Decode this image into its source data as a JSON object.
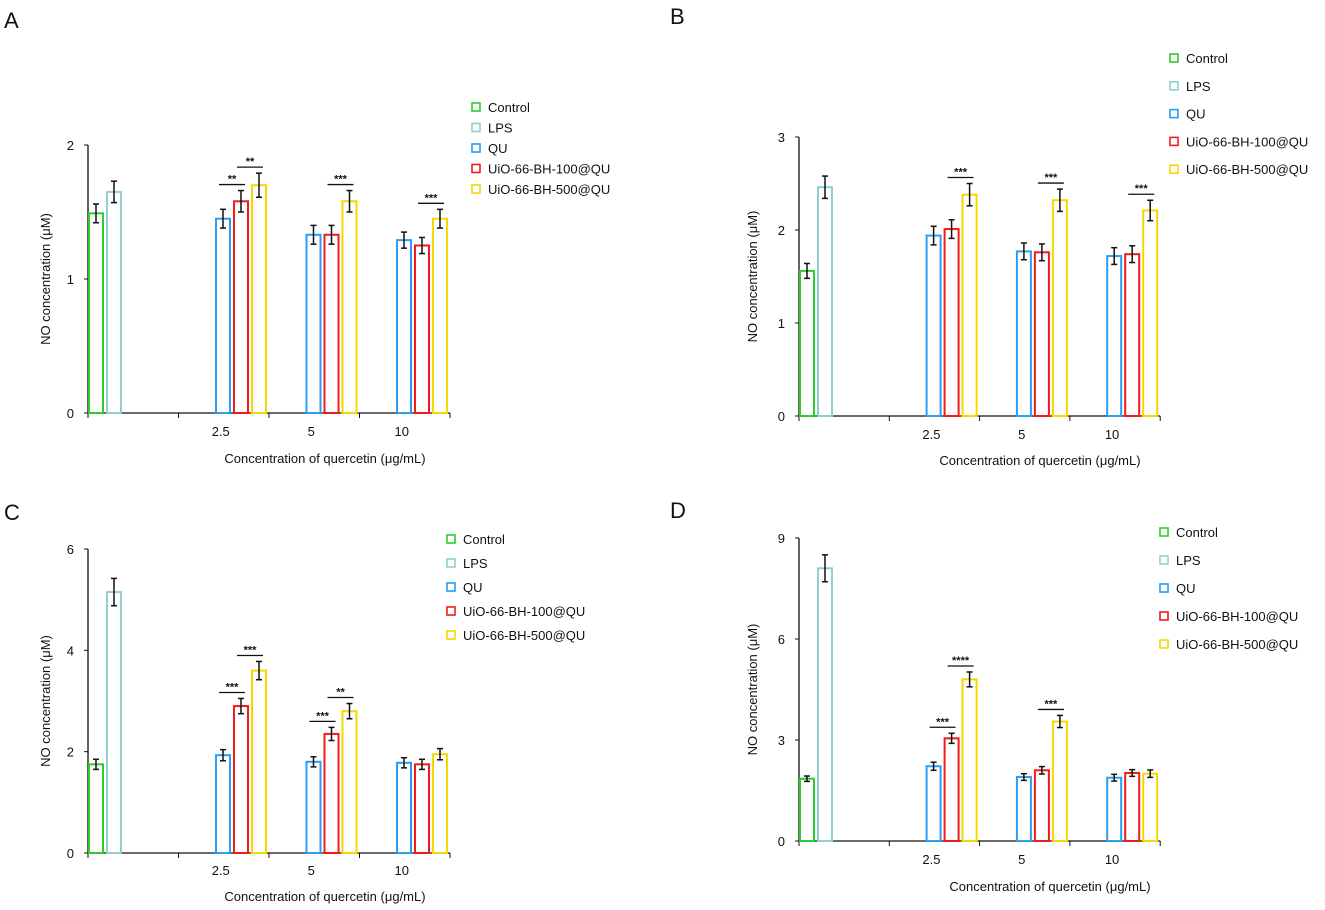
{
  "colors": {
    "Control": "#2ecc2e",
    "LPS": "#8fd0cc",
    "QU": "#2a9df4",
    "UiO-66-BH-100@QU": "#f01c1c",
    "UiO-66-BH-500@QU": "#f5d800"
  },
  "chart_data": [
    {
      "panel": "A",
      "type": "bar",
      "xlabel": "Concentration of quercetin (μg/mL)",
      "ylabel": "NO concentration (μM)",
      "categories": [
        "",
        "2.5",
        "5",
        "10"
      ],
      "ylim": [
        0,
        2
      ],
      "yticks": [
        0,
        1,
        2
      ],
      "legend": [
        "Control",
        "LPS",
        "QU",
        "UiO-66-BH-100@QU",
        "UiO-66-BH-500@QU"
      ],
      "series": [
        {
          "name": "Control",
          "values": [
            1.49,
            null,
            null,
            null
          ],
          "errors": [
            0.07,
            null,
            null,
            null
          ]
        },
        {
          "name": "LPS",
          "values": [
            1.65,
            null,
            null,
            null
          ],
          "errors": [
            0.08,
            null,
            null,
            null
          ]
        },
        {
          "name": "QU",
          "values": [
            null,
            1.45,
            1.33,
            1.29
          ],
          "errors": [
            null,
            0.07,
            0.07,
            0.06
          ]
        },
        {
          "name": "UiO-66-BH-100@QU",
          "values": [
            null,
            1.58,
            1.33,
            1.25
          ],
          "errors": [
            null,
            0.08,
            0.07,
            0.06
          ]
        },
        {
          "name": "UiO-66-BH-500@QU",
          "values": [
            null,
            1.7,
            1.58,
            1.45
          ],
          "errors": [
            null,
            0.09,
            0.08,
            0.07
          ]
        }
      ],
      "significance": [
        {
          "category": "2.5",
          "from": "QU",
          "to": "UiO-66-BH-100@QU",
          "label": "**"
        },
        {
          "category": "2.5",
          "from": "UiO-66-BH-100@QU",
          "to": "UiO-66-BH-500@QU",
          "label": "**"
        },
        {
          "category": "5",
          "from": "UiO-66-BH-100@QU",
          "to": "UiO-66-BH-500@QU",
          "label": "***"
        },
        {
          "category": "10",
          "from": "UiO-66-BH-100@QU",
          "to": "UiO-66-BH-500@QU",
          "label": "***"
        }
      ]
    },
    {
      "panel": "B",
      "type": "bar",
      "xlabel": "Concentration of quercetin (μg/mL)",
      "ylabel": "NO concentration (μM)",
      "categories": [
        "",
        "2.5",
        "5",
        "10"
      ],
      "ylim": [
        0,
        3
      ],
      "yticks": [
        0,
        1,
        2,
        3
      ],
      "legend": [
        "Control",
        "LPS",
        "QU",
        "UiO-66-BH-100@QU",
        "UiO-66-BH-500@QU"
      ],
      "series": [
        {
          "name": "Control",
          "values": [
            1.56,
            null,
            null,
            null
          ],
          "errors": [
            0.08,
            null,
            null,
            null
          ]
        },
        {
          "name": "LPS",
          "values": [
            2.46,
            null,
            null,
            null
          ],
          "errors": [
            0.12,
            null,
            null,
            null
          ]
        },
        {
          "name": "QU",
          "values": [
            null,
            1.94,
            1.77,
            1.72
          ],
          "errors": [
            null,
            0.1,
            0.09,
            0.09
          ]
        },
        {
          "name": "UiO-66-BH-100@QU",
          "values": [
            null,
            2.01,
            1.76,
            1.74
          ],
          "errors": [
            null,
            0.1,
            0.09,
            0.09
          ]
        },
        {
          "name": "UiO-66-BH-500@QU",
          "values": [
            null,
            2.38,
            2.32,
            2.21
          ],
          "errors": [
            null,
            0.12,
            0.12,
            0.11
          ]
        }
      ],
      "significance": [
        {
          "category": "2.5",
          "from": "UiO-66-BH-100@QU",
          "to": "UiO-66-BH-500@QU",
          "label": "***"
        },
        {
          "category": "5",
          "from": "UiO-66-BH-100@QU",
          "to": "UiO-66-BH-500@QU",
          "label": "***"
        },
        {
          "category": "10",
          "from": "UiO-66-BH-100@QU",
          "to": "UiO-66-BH-500@QU",
          "label": "***"
        }
      ]
    },
    {
      "panel": "C",
      "type": "bar",
      "xlabel": "Concentration of quercetin (μg/mL)",
      "ylabel": "NO concentration (μM)",
      "categories": [
        "",
        "2.5",
        "5",
        "10"
      ],
      "ylim": [
        0,
        6
      ],
      "yticks": [
        0,
        2,
        4,
        6
      ],
      "legend": [
        "Control",
        "LPS",
        "QU",
        "UiO-66-BH-100@QU",
        "UiO-66-BH-500@QU"
      ],
      "series": [
        {
          "name": "Control",
          "values": [
            1.75,
            null,
            null,
            null
          ],
          "errors": [
            0.1,
            null,
            null,
            null
          ]
        },
        {
          "name": "LPS",
          "values": [
            5.15,
            null,
            null,
            null
          ],
          "errors": [
            0.27,
            null,
            null,
            null
          ]
        },
        {
          "name": "QU",
          "values": [
            null,
            1.93,
            1.8,
            1.78
          ],
          "errors": [
            null,
            0.11,
            0.1,
            0.1
          ]
        },
        {
          "name": "UiO-66-BH-100@QU",
          "values": [
            null,
            2.9,
            2.35,
            1.75
          ],
          "errors": [
            null,
            0.15,
            0.13,
            0.1
          ]
        },
        {
          "name": "UiO-66-BH-500@QU",
          "values": [
            null,
            3.6,
            2.8,
            1.95
          ],
          "errors": [
            null,
            0.18,
            0.15,
            0.11
          ]
        }
      ],
      "significance": [
        {
          "category": "2.5",
          "from": "QU",
          "to": "UiO-66-BH-100@QU",
          "label": "***"
        },
        {
          "category": "2.5",
          "from": "UiO-66-BH-100@QU",
          "to": "UiO-66-BH-500@QU",
          "label": "***"
        },
        {
          "category": "5",
          "from": "QU",
          "to": "UiO-66-BH-100@QU",
          "label": "***"
        },
        {
          "category": "5",
          "from": "UiO-66-BH-100@QU",
          "to": "UiO-66-BH-500@QU",
          "label": "**"
        }
      ]
    },
    {
      "panel": "D",
      "type": "bar",
      "xlabel": "Concentration of quercetin (μg/mL)",
      "ylabel": "NO concentration (μM)",
      "categories": [
        "",
        "2.5",
        "5",
        "10"
      ],
      "ylim": [
        0,
        9
      ],
      "yticks": [
        0,
        3,
        6,
        9
      ],
      "legend": [
        "Control",
        "LPS",
        "QU",
        "UiO-66-BH-100@QU",
        "UiO-66-BH-500@QU"
      ],
      "series": [
        {
          "name": "Control",
          "values": [
            1.85,
            null,
            null,
            null
          ],
          "errors": [
            0.08,
            null,
            null,
            null
          ]
        },
        {
          "name": "LPS",
          "values": [
            8.1,
            null,
            null,
            null
          ],
          "errors": [
            0.4,
            null,
            null,
            null
          ]
        },
        {
          "name": "QU",
          "values": [
            null,
            2.22,
            1.9,
            1.88
          ],
          "errors": [
            null,
            0.12,
            0.1,
            0.1
          ]
        },
        {
          "name": "UiO-66-BH-100@QU",
          "values": [
            null,
            3.05,
            2.1,
            2.02
          ],
          "errors": [
            null,
            0.15,
            0.11,
            0.1
          ]
        },
        {
          "name": "UiO-66-BH-500@QU",
          "values": [
            null,
            4.8,
            3.55,
            2.0
          ],
          "errors": [
            null,
            0.22,
            0.18,
            0.11
          ]
        }
      ],
      "significance": [
        {
          "category": "2.5",
          "from": "QU",
          "to": "UiO-66-BH-100@QU",
          "label": "***"
        },
        {
          "category": "2.5",
          "from": "UiO-66-BH-100@QU",
          "to": "UiO-66-BH-500@QU",
          "label": "****"
        },
        {
          "category": "5",
          "from": "UiO-66-BH-100@QU",
          "to": "UiO-66-BH-500@QU",
          "label": "***"
        }
      ]
    }
  ]
}
